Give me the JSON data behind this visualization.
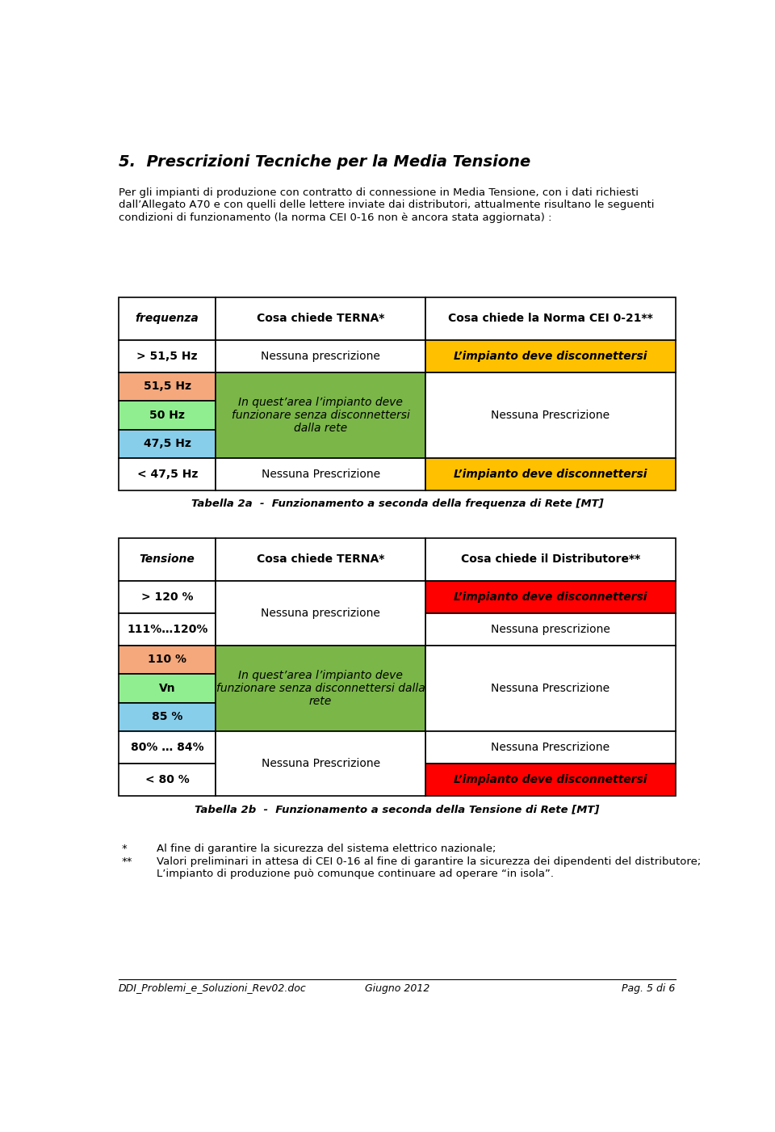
{
  "title": "5.  Prescrizioni Tecniche per la Media Tensione",
  "intro_line1": "Per gli impianti di produzione con contratto di connessione in Media Tensione, con i dati richiesti",
  "intro_line2": "dall’Allegato A70 e con quelli delle lettere inviate dai distributori, attualmente risultano le seguenti",
  "intro_line3": "condizioni di funzionamento (la norma CEI 0-16 non è ancora stata aggiornata) :",
  "table1_caption": "Tabella 2a  -  Funzionamento a seconda della frequenza di Rete [MT]",
  "table2_caption": "Tabella 2b  -  Funzionamento a seconda della Tensione di Rete [MT]",
  "footer_left": "DDI_Problemi_e_Soluzioni_Rev02.doc",
  "footer_center": "Giugno 2012",
  "footer_right": "Pag. 5 di 6",
  "footnote1_star": "*",
  "footnote1_text": "Al fine di garantire la sicurezza del sistema elettrico nazionale;",
  "footnote2_star": "**",
  "footnote2_text": "Valori preliminari in attesa di CEI 0-16 al fine di garantire la sicurezza dei dipendenti del distributore;",
  "footnote3_text": "L’impianto di produzione può comunque continuare ad operare “in isola”.",
  "bg_color": "#ffffff",
  "border_color": "#000000",
  "yellow_color": "#FFC000",
  "red_color": "#FF0000",
  "green_color": "#7AB648",
  "salmon_color": "#F4A87C",
  "light_green_color": "#90EE90",
  "light_blue_color": "#87CEEB",
  "table1_headers": [
    "frequenza",
    "Cosa chiede TERNA*",
    "Cosa chiede la Norma CEI 0-21**"
  ],
  "table2_headers": [
    "Tensione",
    "Cosa chiede TERNA*",
    "Cosa chiede il Distributore**"
  ],
  "disconnect_text": "L’impianto deve disconnettersi",
  "green_text1": "In quest’area l’impianto deve\nfunzionare senza disconnettersi\ndalla rete",
  "green_text2": "In quest’area l’impianto deve\nfunzionare senza disconnettersi dalla\nrete",
  "nessuna_prescrizione_lower": "Nessuna prescrizione",
  "nessuna_prescrizione_upper": "Nessuna Prescrizione"
}
